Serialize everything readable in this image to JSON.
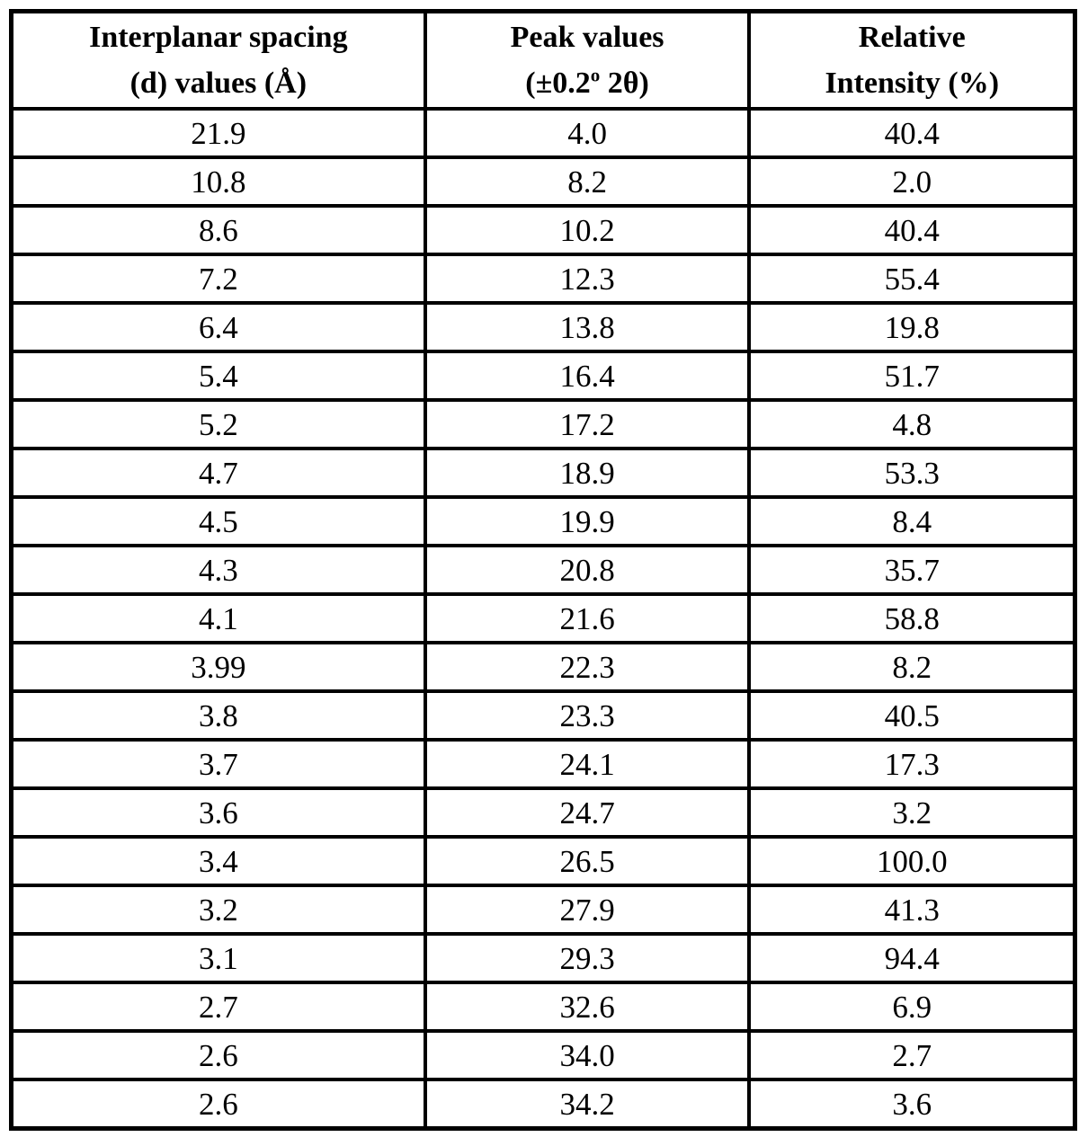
{
  "table": {
    "headers": [
      {
        "line1": "Interplanar spacing",
        "line2": "(d) values (Å)"
      },
      {
        "line1": "Peak values",
        "line2_prefix": "(±0.2",
        "line2_sup": "o",
        "line2_suffix": " 2θ)"
      },
      {
        "line1": "Relative",
        "line2": "Intensity (%)"
      }
    ],
    "rows": [
      [
        "21.9",
        "4.0",
        "40.4"
      ],
      [
        "10.8",
        "8.2",
        "2.0"
      ],
      [
        "8.6",
        "10.2",
        "40.4"
      ],
      [
        "7.2",
        "12.3",
        "55.4"
      ],
      [
        "6.4",
        "13.8",
        "19.8"
      ],
      [
        "5.4",
        "16.4",
        "51.7"
      ],
      [
        "5.2",
        "17.2",
        "4.8"
      ],
      [
        "4.7",
        "18.9",
        "53.3"
      ],
      [
        "4.5",
        "19.9",
        "8.4"
      ],
      [
        "4.3",
        "20.8",
        "35.7"
      ],
      [
        "4.1",
        "21.6",
        "58.8"
      ],
      [
        "3.99",
        "22.3",
        "8.2"
      ],
      [
        "3.8",
        "23.3",
        "40.5"
      ],
      [
        "3.7",
        "24.1",
        "17.3"
      ],
      [
        "3.6",
        "24.7",
        "3.2"
      ],
      [
        "3.4",
        "26.5",
        "100.0"
      ],
      [
        "3.2",
        "27.9",
        "41.3"
      ],
      [
        "3.1",
        "29.3",
        "94.4"
      ],
      [
        "2.7",
        "32.6",
        "6.9"
      ],
      [
        "2.6",
        "34.0",
        "2.7"
      ],
      [
        "2.6",
        "34.2",
        "3.6"
      ]
    ]
  },
  "colors": {
    "border": "#000000",
    "background": "#ffffff",
    "text": "#000000"
  }
}
